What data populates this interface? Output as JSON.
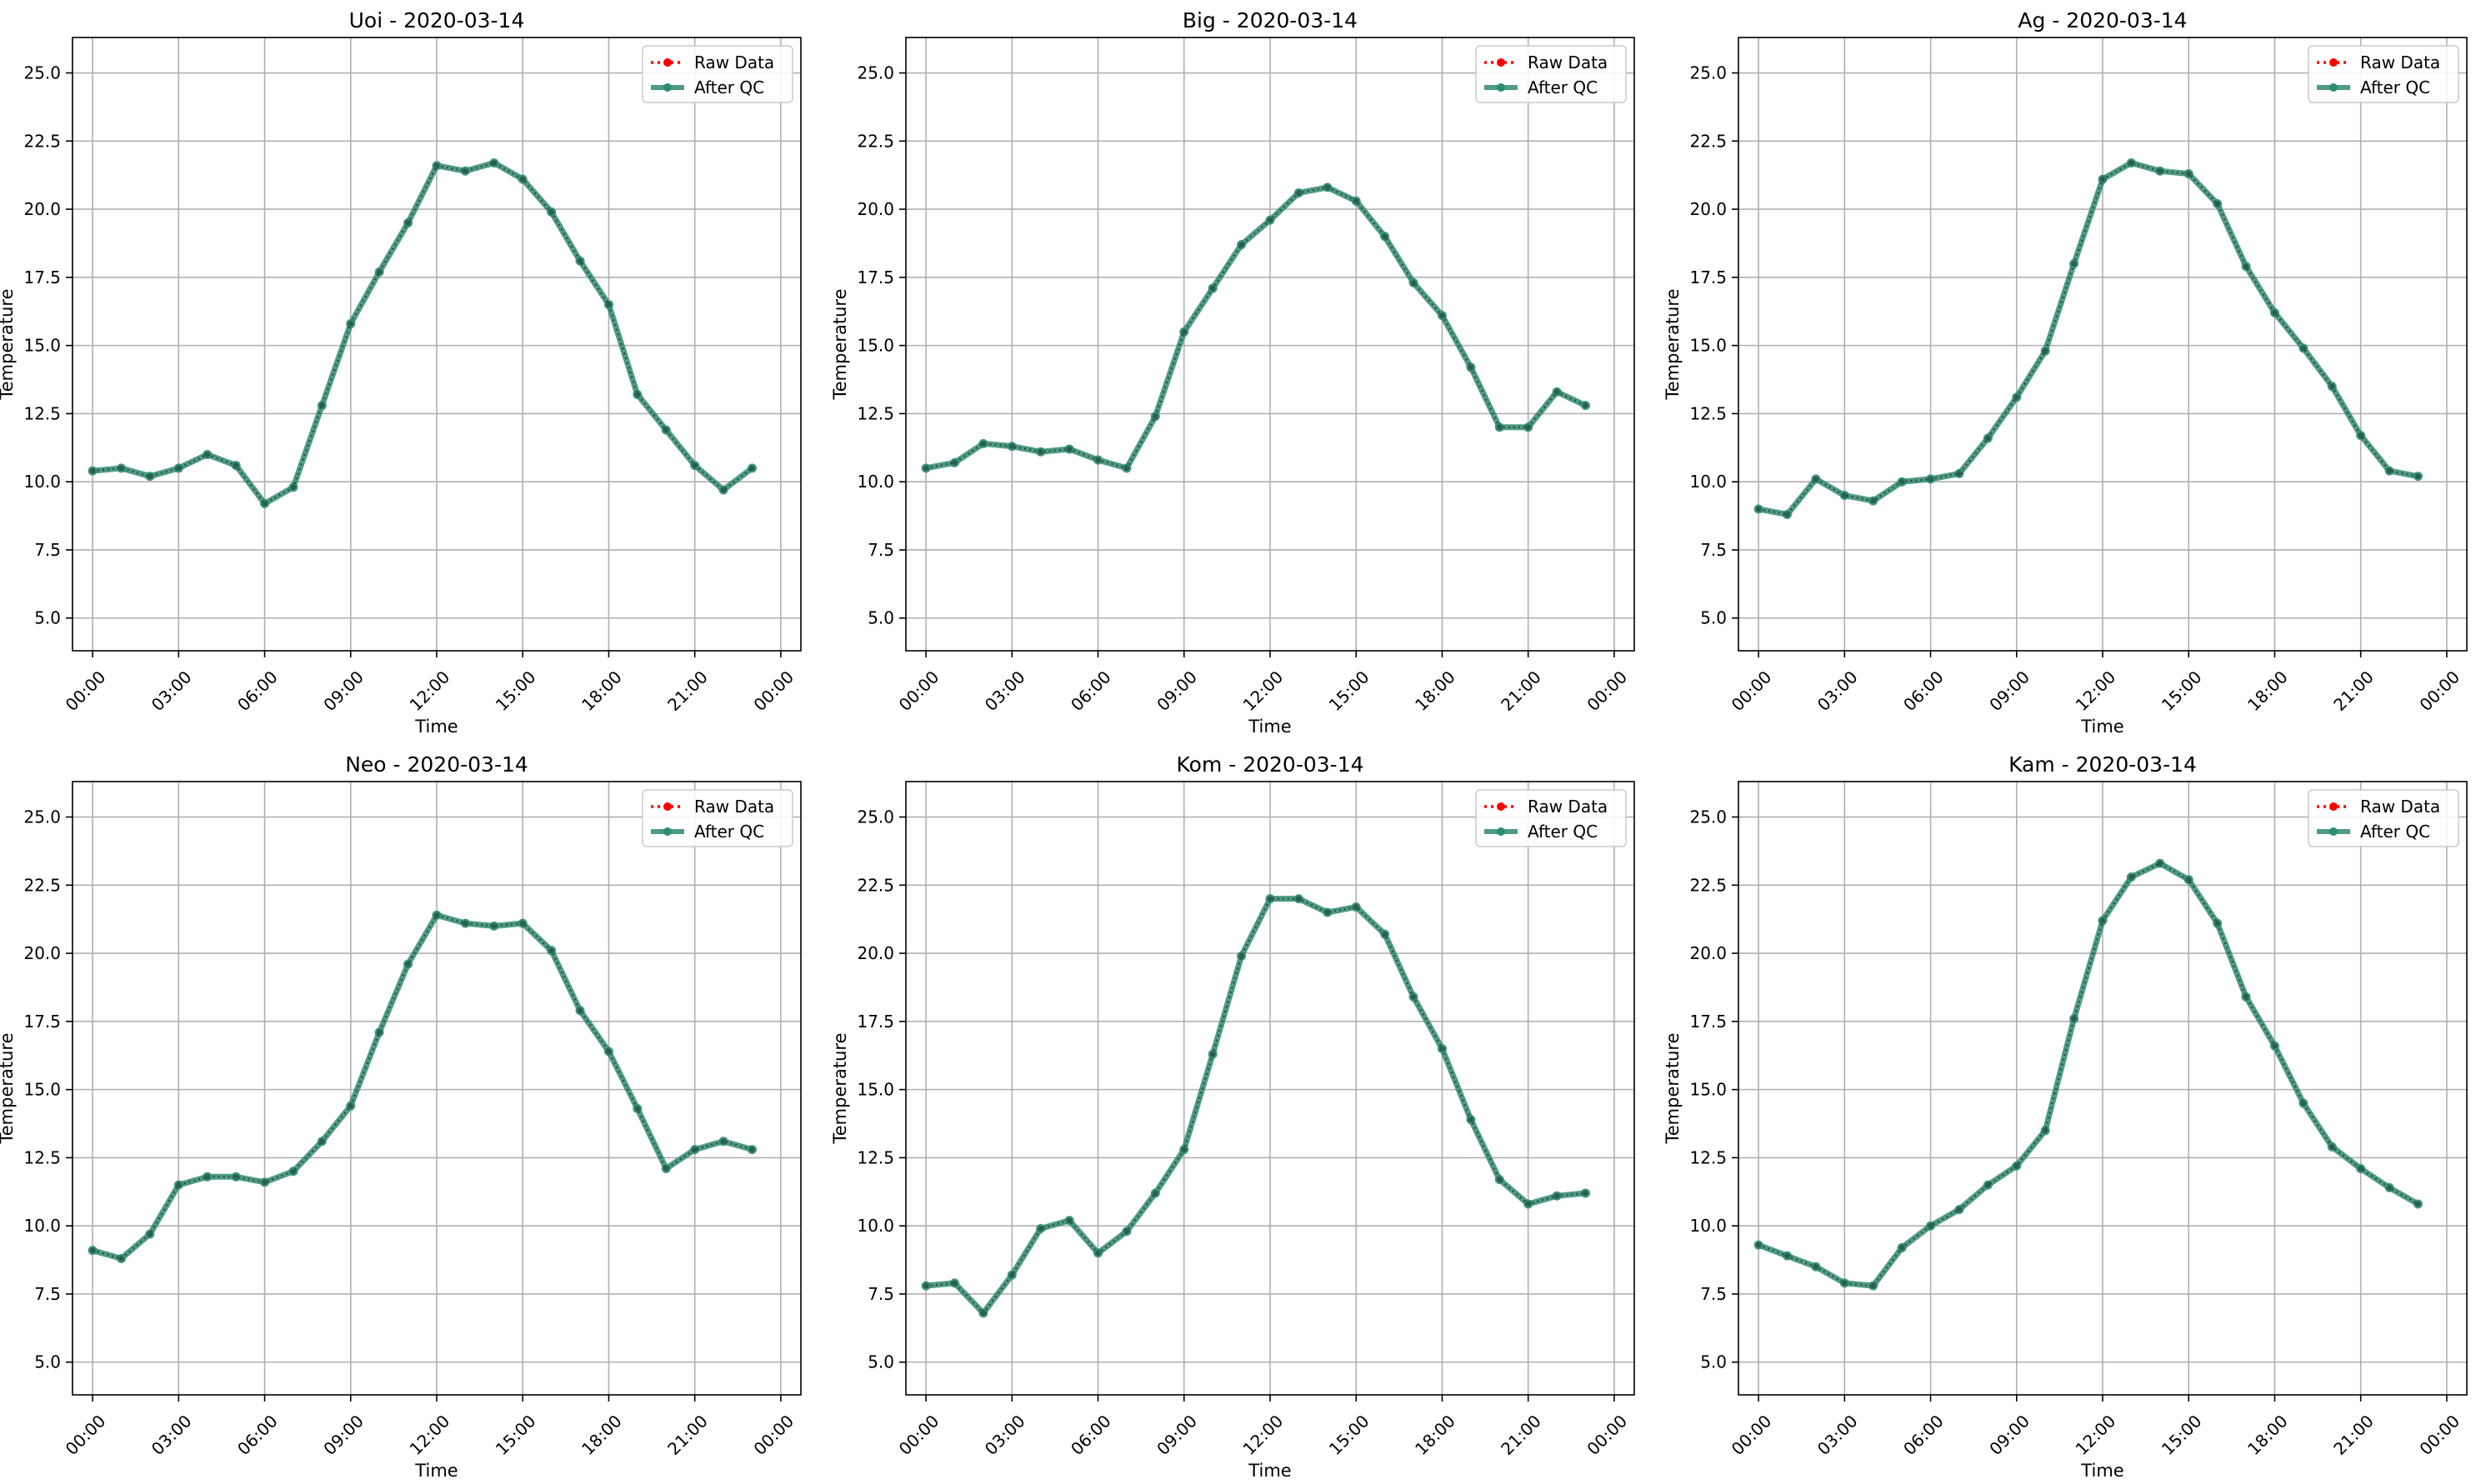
{
  "figure": {
    "x_tick_labels": [
      "00:00",
      "03:00",
      "06:00",
      "09:00",
      "12:00",
      "15:00",
      "18:00",
      "21:00",
      "00:00"
    ],
    "y_tick_labels": [
      "5.0",
      "7.5",
      "10.0",
      "12.5",
      "15.0",
      "17.5",
      "20.0",
      "22.5",
      "25.0"
    ],
    "legend_labels": {
      "raw": "Raw Data",
      "qc": "After QC"
    },
    "colors": {
      "raw": "#ff0000",
      "qc": "#2e8b70",
      "grid": "#b0b0b0"
    }
  },
  "chart_data": [
    {
      "type": "line",
      "title": "Uoi - 2020-03-14",
      "xlabel": "Time",
      "ylabel": "Temperature",
      "ylim": [
        3.8,
        26.3
      ],
      "x": [
        "00:00",
        "01:00",
        "02:00",
        "03:00",
        "04:00",
        "05:00",
        "06:00",
        "07:00",
        "08:00",
        "09:00",
        "10:00",
        "11:00",
        "12:00",
        "13:00",
        "14:00",
        "15:00",
        "16:00",
        "17:00",
        "18:00",
        "19:00",
        "20:00",
        "21:00",
        "22:00",
        "23:00"
      ],
      "series": [
        {
          "name": "Raw Data",
          "values": [
            10.4,
            10.5,
            10.2,
            10.5,
            11.0,
            10.6,
            9.2,
            9.8,
            12.8,
            15.8,
            17.7,
            19.5,
            21.6,
            21.4,
            21.7,
            21.1,
            19.9,
            18.1,
            16.5,
            13.2,
            11.9,
            10.6,
            9.7,
            10.5
          ]
        },
        {
          "name": "After QC",
          "values": [
            10.4,
            10.5,
            10.2,
            10.5,
            11.0,
            10.6,
            9.2,
            9.8,
            12.8,
            15.8,
            17.7,
            19.5,
            21.6,
            21.4,
            21.7,
            21.1,
            19.9,
            18.1,
            16.5,
            13.2,
            11.9,
            10.6,
            9.7,
            10.5
          ]
        }
      ],
      "legend": "top-right",
      "grid": true
    },
    {
      "type": "line",
      "title": "Big - 2020-03-14",
      "xlabel": "Time",
      "ylabel": "Temperature",
      "ylim": [
        3.8,
        26.3
      ],
      "x": [
        "00:00",
        "01:00",
        "02:00",
        "03:00",
        "04:00",
        "05:00",
        "06:00",
        "07:00",
        "08:00",
        "09:00",
        "10:00",
        "11:00",
        "12:00",
        "13:00",
        "14:00",
        "15:00",
        "16:00",
        "17:00",
        "18:00",
        "19:00",
        "20:00",
        "21:00",
        "22:00",
        "23:00"
      ],
      "series": [
        {
          "name": "Raw Data",
          "values": [
            10.5,
            10.7,
            11.4,
            11.3,
            11.1,
            11.2,
            10.8,
            10.5,
            12.4,
            15.5,
            17.1,
            18.7,
            19.6,
            20.6,
            20.8,
            20.3,
            19.0,
            17.3,
            16.1,
            14.2,
            12.0,
            12.0,
            13.3,
            12.8
          ]
        },
        {
          "name": "After QC",
          "values": [
            10.5,
            10.7,
            11.4,
            11.3,
            11.1,
            11.2,
            10.8,
            10.5,
            12.4,
            15.5,
            17.1,
            18.7,
            19.6,
            20.6,
            20.8,
            20.3,
            19.0,
            17.3,
            16.1,
            14.2,
            12.0,
            12.0,
            13.3,
            12.8
          ]
        }
      ],
      "legend": "top-right",
      "grid": true
    },
    {
      "type": "line",
      "title": "Ag - 2020-03-14",
      "xlabel": "Time",
      "ylabel": "Temperature",
      "ylim": [
        3.8,
        26.3
      ],
      "x": [
        "00:00",
        "01:00",
        "02:00",
        "03:00",
        "04:00",
        "05:00",
        "06:00",
        "07:00",
        "08:00",
        "09:00",
        "10:00",
        "11:00",
        "12:00",
        "13:00",
        "14:00",
        "15:00",
        "16:00",
        "17:00",
        "18:00",
        "19:00",
        "20:00",
        "21:00",
        "22:00",
        "23:00"
      ],
      "series": [
        {
          "name": "Raw Data",
          "values": [
            9.0,
            8.8,
            10.1,
            9.5,
            9.3,
            10.0,
            10.1,
            10.3,
            11.6,
            13.1,
            14.8,
            18.0,
            21.1,
            21.7,
            21.4,
            21.3,
            20.2,
            17.9,
            16.2,
            14.9,
            13.5,
            11.7,
            10.4,
            10.2
          ]
        },
        {
          "name": "After QC",
          "values": [
            9.0,
            8.8,
            10.1,
            9.5,
            9.3,
            10.0,
            10.1,
            10.3,
            11.6,
            13.1,
            14.8,
            18.0,
            21.1,
            21.7,
            21.4,
            21.3,
            20.2,
            17.9,
            16.2,
            14.9,
            13.5,
            11.7,
            10.4,
            10.2
          ]
        }
      ],
      "legend": "top-right",
      "grid": true
    },
    {
      "type": "line",
      "title": "Neo - 2020-03-14",
      "xlabel": "Time",
      "ylabel": "Temperature",
      "ylim": [
        3.8,
        26.3
      ],
      "x": [
        "00:00",
        "01:00",
        "02:00",
        "03:00",
        "04:00",
        "05:00",
        "06:00",
        "07:00",
        "08:00",
        "09:00",
        "10:00",
        "11:00",
        "12:00",
        "13:00",
        "14:00",
        "15:00",
        "16:00",
        "17:00",
        "18:00",
        "19:00",
        "20:00",
        "21:00",
        "22:00",
        "23:00"
      ],
      "series": [
        {
          "name": "Raw Data",
          "values": [
            9.1,
            8.8,
            9.7,
            11.5,
            11.8,
            11.8,
            11.6,
            12.0,
            13.1,
            14.4,
            17.1,
            19.6,
            21.4,
            21.1,
            21.0,
            21.1,
            20.1,
            17.9,
            16.4,
            14.3,
            12.1,
            12.8,
            13.1,
            12.8
          ]
        },
        {
          "name": "After QC",
          "values": [
            9.1,
            8.8,
            9.7,
            11.5,
            11.8,
            11.8,
            11.6,
            12.0,
            13.1,
            14.4,
            17.1,
            19.6,
            21.4,
            21.1,
            21.0,
            21.1,
            20.1,
            17.9,
            16.4,
            14.3,
            12.1,
            12.8,
            13.1,
            12.8
          ]
        }
      ],
      "legend": "top-right",
      "grid": true
    },
    {
      "type": "line",
      "title": "Kom - 2020-03-14",
      "xlabel": "Time",
      "ylabel": "Temperature",
      "ylim": [
        3.8,
        26.3
      ],
      "x": [
        "00:00",
        "01:00",
        "02:00",
        "03:00",
        "04:00",
        "05:00",
        "06:00",
        "07:00",
        "08:00",
        "09:00",
        "10:00",
        "11:00",
        "12:00",
        "13:00",
        "14:00",
        "15:00",
        "16:00",
        "17:00",
        "18:00",
        "19:00",
        "20:00",
        "21:00",
        "22:00",
        "23:00"
      ],
      "series": [
        {
          "name": "Raw Data",
          "values": [
            7.8,
            7.9,
            6.8,
            8.2,
            9.9,
            10.2,
            9.0,
            9.8,
            11.2,
            12.8,
            16.3,
            19.9,
            22.0,
            22.0,
            21.5,
            21.7,
            20.7,
            18.4,
            16.5,
            13.9,
            11.7,
            10.8,
            11.1,
            11.2
          ]
        },
        {
          "name": "After QC",
          "values": [
            7.8,
            7.9,
            6.8,
            8.2,
            9.9,
            10.2,
            9.0,
            9.8,
            11.2,
            12.8,
            16.3,
            19.9,
            22.0,
            22.0,
            21.5,
            21.7,
            20.7,
            18.4,
            16.5,
            13.9,
            11.7,
            10.8,
            11.1,
            11.2
          ]
        }
      ],
      "legend": "top-right",
      "grid": true
    },
    {
      "type": "line",
      "title": "Kam - 2020-03-14",
      "xlabel": "Time",
      "ylabel": "Temperature",
      "ylim": [
        3.8,
        26.3
      ],
      "x": [
        "00:00",
        "01:00",
        "02:00",
        "03:00",
        "04:00",
        "05:00",
        "06:00",
        "07:00",
        "08:00",
        "09:00",
        "10:00",
        "11:00",
        "12:00",
        "13:00",
        "14:00",
        "15:00",
        "16:00",
        "17:00",
        "18:00",
        "19:00",
        "20:00",
        "21:00",
        "22:00",
        "23:00"
      ],
      "series": [
        {
          "name": "Raw Data",
          "values": [
            9.3,
            8.9,
            8.5,
            7.9,
            7.8,
            9.2,
            10.0,
            10.6,
            11.5,
            12.2,
            13.5,
            17.6,
            21.2,
            22.8,
            23.3,
            22.7,
            21.1,
            18.4,
            16.6,
            14.5,
            12.9,
            12.1,
            11.4,
            10.8
          ]
        },
        {
          "name": "After QC",
          "values": [
            9.3,
            8.9,
            8.5,
            7.9,
            7.8,
            9.2,
            10.0,
            10.6,
            11.5,
            12.2,
            13.5,
            17.6,
            21.2,
            22.8,
            23.3,
            22.7,
            21.1,
            18.4,
            16.6,
            14.5,
            12.9,
            12.1,
            11.4,
            10.8
          ]
        }
      ],
      "legend": "top-right",
      "grid": true
    }
  ]
}
